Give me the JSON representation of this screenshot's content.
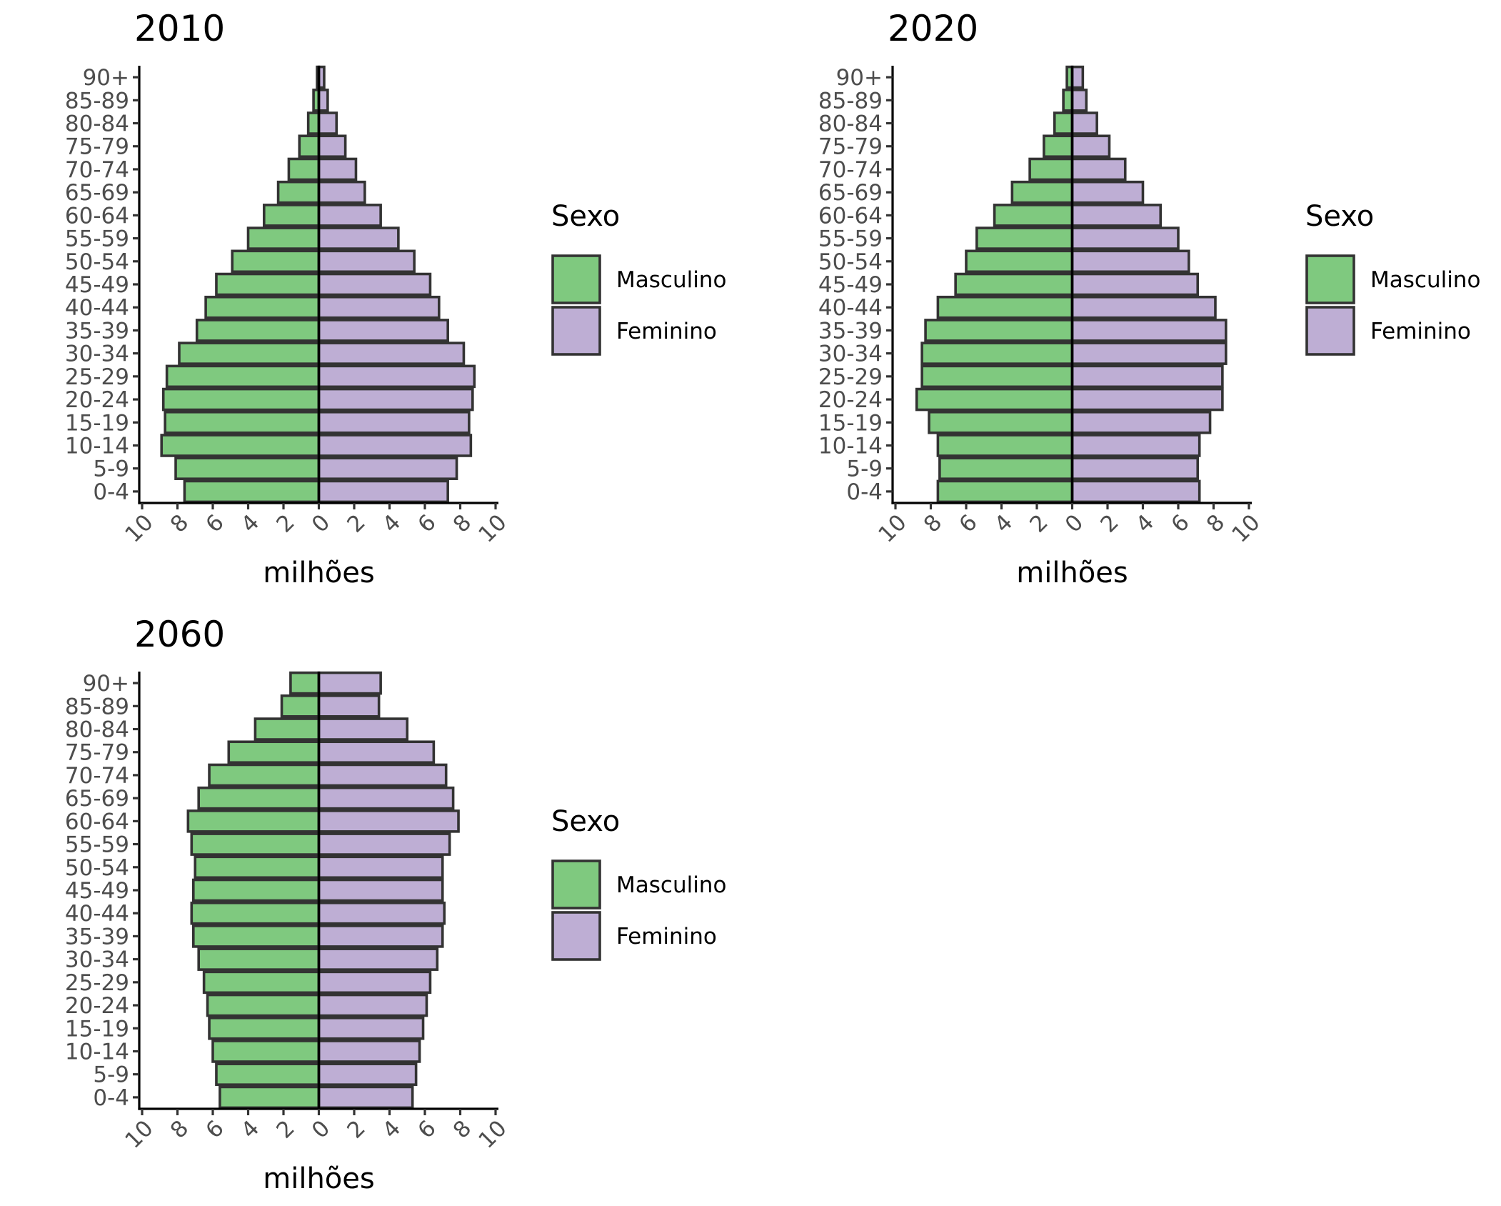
{
  "chart_data": [
    {
      "type": "bar",
      "title": "2010",
      "xlabel": "milhões",
      "ylabel": "",
      "xlim": [
        -10,
        10
      ],
      "x_tick_labels": [
        "10",
        "8",
        "6",
        "4",
        "2",
        "0",
        "2",
        "4",
        "6",
        "8",
        "10"
      ],
      "legend": {
        "title": "Sexo",
        "placement": "right"
      },
      "categories": [
        "0-4",
        "5-9",
        "10-14",
        "15-19",
        "20-24",
        "25-29",
        "30-34",
        "35-39",
        "40-44",
        "45-49",
        "50-54",
        "55-59",
        "60-64",
        "65-69",
        "70-74",
        "75-79",
        "80-84",
        "85-89",
        "90+"
      ],
      "series": [
        {
          "name": "Masculino",
          "color": "#7fc97f",
          "values": [
            7.6,
            8.1,
            8.9,
            8.7,
            8.8,
            8.6,
            7.9,
            6.9,
            6.4,
            5.8,
            4.9,
            4.0,
            3.1,
            2.3,
            1.7,
            1.1,
            0.6,
            0.3,
            0.1
          ]
        },
        {
          "name": "Feminino",
          "color": "#beaed4",
          "values": [
            7.3,
            7.8,
            8.6,
            8.5,
            8.7,
            8.8,
            8.2,
            7.3,
            6.8,
            6.3,
            5.4,
            4.5,
            3.5,
            2.6,
            2.1,
            1.5,
            1.0,
            0.5,
            0.3
          ]
        }
      ]
    },
    {
      "type": "bar",
      "title": "2020",
      "xlabel": "milhões",
      "ylabel": "",
      "xlim": [
        -10,
        10
      ],
      "x_tick_labels": [
        "10",
        "8",
        "6",
        "4",
        "2",
        "0",
        "2",
        "4",
        "6",
        "8",
        "10"
      ],
      "legend": {
        "title": "Sexo",
        "placement": "right"
      },
      "categories": [
        "0-4",
        "5-9",
        "10-14",
        "15-19",
        "20-24",
        "25-29",
        "30-34",
        "35-39",
        "40-44",
        "45-49",
        "50-54",
        "55-59",
        "60-64",
        "65-69",
        "70-74",
        "75-79",
        "80-84",
        "85-89",
        "90+"
      ],
      "series": [
        {
          "name": "Masculino",
          "color": "#7fc97f",
          "values": [
            7.6,
            7.5,
            7.6,
            8.1,
            8.8,
            8.5,
            8.5,
            8.3,
            7.6,
            6.6,
            6.0,
            5.4,
            4.4,
            3.4,
            2.4,
            1.6,
            1.0,
            0.5,
            0.3
          ]
        },
        {
          "name": "Feminino",
          "color": "#beaed4",
          "values": [
            7.2,
            7.1,
            7.2,
            7.8,
            8.5,
            8.5,
            8.7,
            8.7,
            8.1,
            7.1,
            6.6,
            6.0,
            5.0,
            4.0,
            3.0,
            2.1,
            1.4,
            0.8,
            0.6
          ]
        }
      ]
    },
    {
      "type": "bar",
      "title": "2060",
      "xlabel": "milhões",
      "ylabel": "",
      "xlim": [
        -10,
        10
      ],
      "x_tick_labels": [
        "10",
        "8",
        "6",
        "4",
        "2",
        "0",
        "2",
        "4",
        "6",
        "8",
        "10"
      ],
      "legend": {
        "title": "Sexo",
        "placement": "right"
      },
      "categories": [
        "0-4",
        "5-9",
        "10-14",
        "15-19",
        "20-24",
        "25-29",
        "30-34",
        "35-39",
        "40-44",
        "45-49",
        "50-54",
        "55-59",
        "60-64",
        "65-69",
        "70-74",
        "75-79",
        "80-84",
        "85-89",
        "90+"
      ],
      "series": [
        {
          "name": "Masculino",
          "color": "#7fc97f",
          "values": [
            5.6,
            5.8,
            6.0,
            6.2,
            6.3,
            6.5,
            6.8,
            7.1,
            7.2,
            7.1,
            7.0,
            7.2,
            7.4,
            6.8,
            6.2,
            5.1,
            3.6,
            2.1,
            1.6
          ]
        },
        {
          "name": "Feminino",
          "color": "#beaed4",
          "values": [
            5.3,
            5.5,
            5.7,
            5.9,
            6.1,
            6.3,
            6.7,
            7.0,
            7.1,
            7.0,
            7.0,
            7.4,
            7.9,
            7.6,
            7.2,
            6.5,
            5.0,
            3.4,
            3.5
          ]
        }
      ]
    }
  ]
}
